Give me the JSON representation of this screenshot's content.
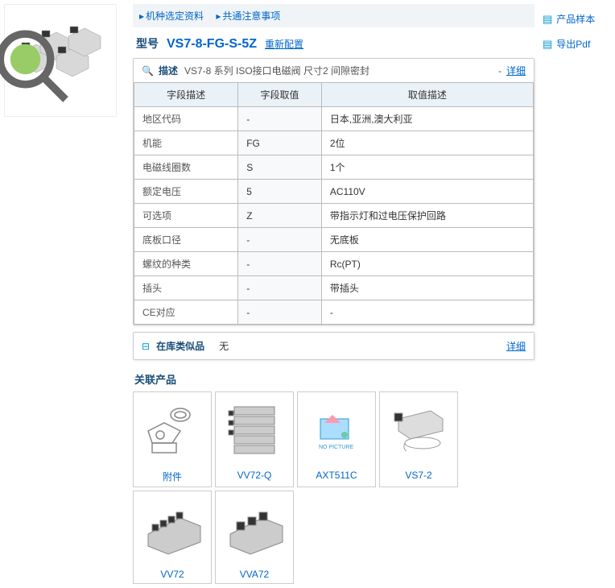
{
  "breadcrumb": {
    "link1": "机种选定资料",
    "link2": "共通注意事项"
  },
  "model": {
    "label": "型号",
    "code": "VS7-8-FG-S-5Z",
    "reconfigure": "重新配置"
  },
  "description": {
    "title": "描述",
    "subtitle": "VS7-8 系列 ISO接口电磁阀 尺寸2 间隙密封",
    "detail": "详细",
    "dash": "-"
  },
  "spec_table": {
    "headers": [
      "字段描述",
      "字段取值",
      "取值描述"
    ],
    "rows": [
      [
        "地区代码",
        "-",
        "日本,亚洲,澳大利亚"
      ],
      [
        "机能",
        "FG",
        "2位"
      ],
      [
        "电磁线圈数",
        "S",
        "1个"
      ],
      [
        "额定电压",
        "5",
        "AC110V"
      ],
      [
        "可选项",
        "Z",
        "带指示灯和过电压保护回路"
      ],
      [
        "底板口径",
        "-",
        "无底板"
      ],
      [
        "螺纹的种类",
        "-",
        "Rc(PT)"
      ],
      [
        "插头",
        "-",
        "带插头"
      ],
      [
        "CE对应",
        "-",
        "-"
      ]
    ]
  },
  "stock": {
    "label": "在库类似品",
    "value": "无",
    "detail": "详细"
  },
  "related": {
    "title": "关联产品",
    "items": [
      {
        "name": "附件"
      },
      {
        "name": "VV72-Q"
      },
      {
        "name": "AXT511C"
      },
      {
        "name": "VS7-2"
      },
      {
        "name": "VV72"
      },
      {
        "name": "VVA72"
      }
    ]
  },
  "side": {
    "sample": "产品样本",
    "pdf": "导出Pdf"
  }
}
